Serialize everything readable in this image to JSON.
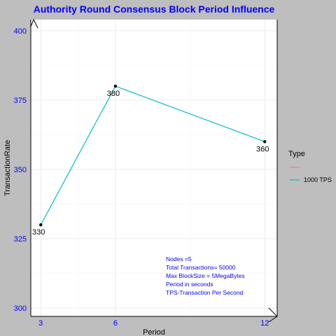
{
  "chart_data": {
    "type": "line",
    "title": "Authority Round Consensus Block Period Influence",
    "xlabel": "Period",
    "ylabel": "TransactionRate",
    "x_ticks": [
      3,
      6,
      12
    ],
    "y_ticks": [
      300,
      325,
      350,
      375,
      400
    ],
    "xlim": [
      2.6,
      12.5
    ],
    "ylim": [
      297,
      404
    ],
    "grid": true,
    "series": [
      {
        "name": "1000 TPS",
        "color": "#00bfc4",
        "x": [
          3,
          6,
          12
        ],
        "y": [
          330,
          380,
          360
        ],
        "labels": [
          "330",
          "380",
          "360"
        ]
      }
    ],
    "legend": {
      "title": "Type",
      "position": "right",
      "entries": [
        {
          "label": "",
          "color": "#f8766d"
        },
        {
          "label": "1000 TPS",
          "color": "#00bfc4"
        }
      ]
    },
    "annotations": [
      "Nodes =5",
      "Total Transactions= 50000",
      "Max BlockSize = 5MegaBytes",
      "Period in seconds",
      "TPS-Transaction Per Second"
    ]
  }
}
